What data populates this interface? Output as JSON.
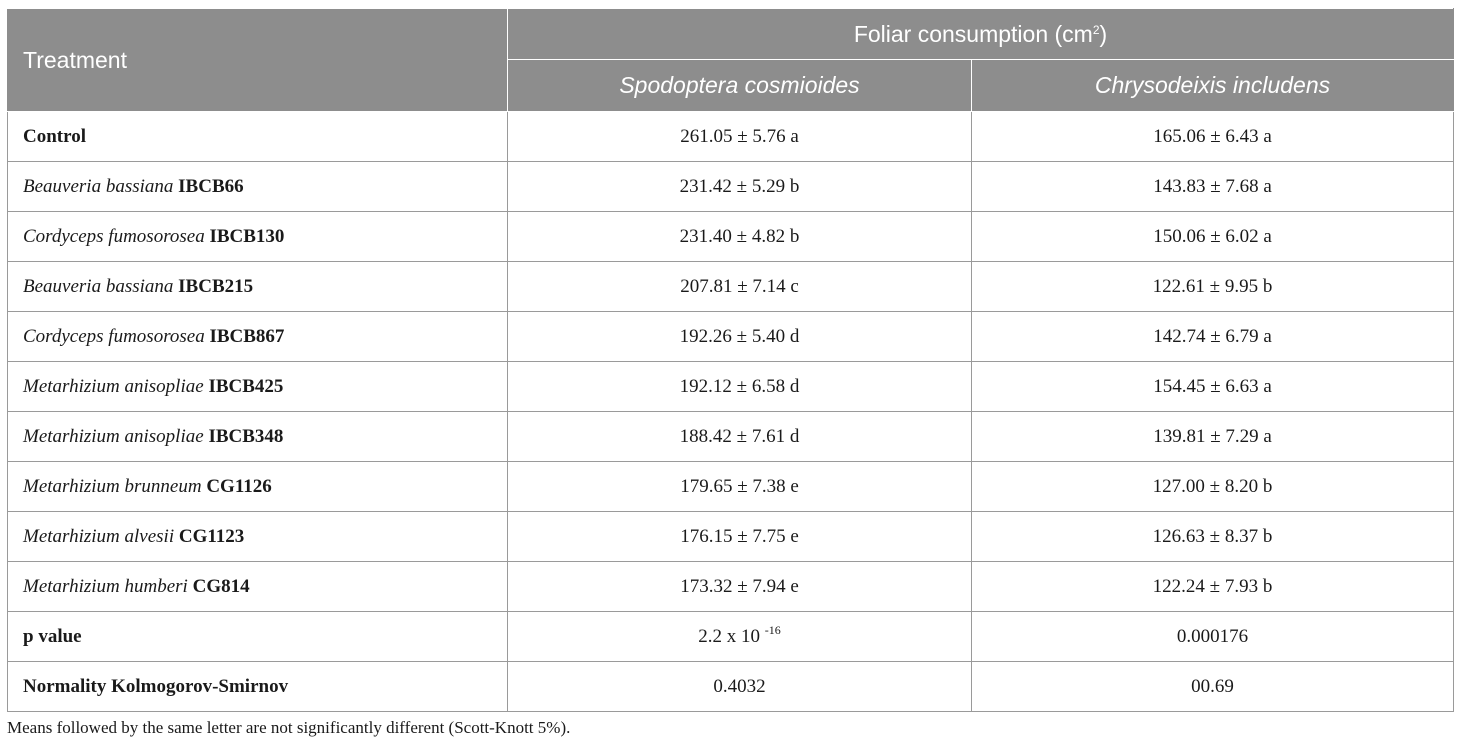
{
  "table": {
    "header": {
      "treatment": "Treatment",
      "group_title": "Foliar consumption (cm",
      "group_unit_sup": "2",
      "group_close": ")",
      "species": [
        "Spodoptera cosmioides",
        "Chrysodeixis includens"
      ]
    },
    "rows": [
      {
        "genus": "",
        "code": "Control",
        "v1": "261.05 ± 5.76 a",
        "v2": "165.06 ± 6.43 a"
      },
      {
        "genus": "Beauveria bassiana",
        "code": "IBCB66",
        "v1": "231.42 ± 5.29 b",
        "v2": "143.83 ± 7.68 a"
      },
      {
        "genus": "Cordyceps fumosorosea",
        "code": "IBCB130",
        "v1": "231.40 ± 4.82 b",
        "v2": "150.06 ± 6.02 a"
      },
      {
        "genus": "Beauveria bassiana",
        "code": "IBCB215",
        "v1": "207.81 ± 7.14 c",
        "v2": "122.61 ± 9.95 b"
      },
      {
        "genus": "Cordyceps fumosorosea",
        "code": "IBCB867",
        "v1": "192.26 ± 5.40 d",
        "v2": "142.74 ± 6.79 a"
      },
      {
        "genus": "Metarhizium anisopliae",
        "code": "IBCB425",
        "v1": "192.12 ± 6.58 d",
        "v2": "154.45 ± 6.63 a"
      },
      {
        "genus": "Metarhizium anisopliae",
        "code": "IBCB348",
        "v1": "188.42 ± 7.61 d",
        "v2": "139.81 ± 7.29 a"
      },
      {
        "genus": "Metarhizium brunneum",
        "code": "CG1126",
        "v1": "179.65 ± 7.38 e",
        "v2": "127.00 ± 8.20 b"
      },
      {
        "genus": "Metarhizium alvesii",
        "code": "CG1123",
        "v1": "176.15 ± 7.75 e",
        "v2": "126.63 ± 8.37 b"
      },
      {
        "genus": "Metarhizium humberi",
        "code": "CG814",
        "v1": "173.32 ± 7.94 e",
        "v2": "122.24 ± 7.93 b"
      }
    ],
    "pvalue": {
      "label": "p value",
      "v1_base": "2.2 x 10",
      "v1_exp": "-16",
      "v2": "0.000176"
    },
    "normality": {
      "label": "Normality Kolmogorov-Smirnov",
      "v1": "0.4032",
      "v2": "00.69"
    }
  },
  "footnote": "Means followed by the same letter are not significantly different (Scott-Knott 5%)."
}
